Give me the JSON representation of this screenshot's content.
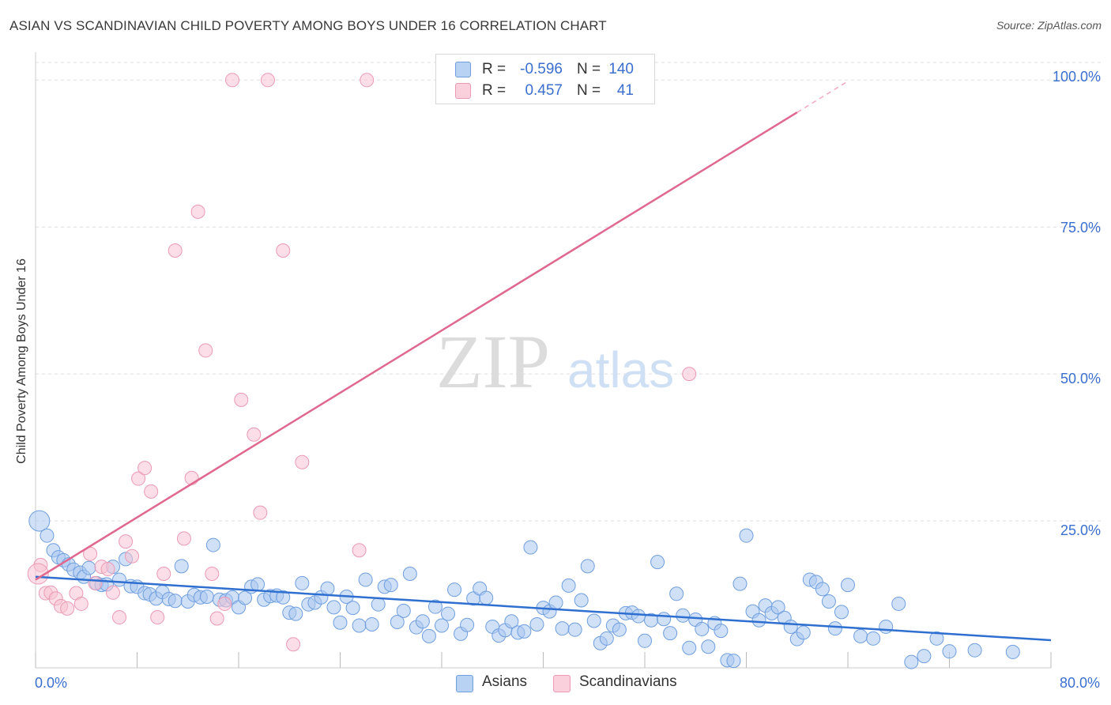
{
  "title": "ASIAN VS SCANDINAVIAN CHILD POVERTY AMONG BOYS UNDER 16 CORRELATION CHART",
  "source": "Source: ZipAtlas.com",
  "watermark": {
    "zip": "ZIP",
    "atlas": "atlas"
  },
  "legend": {
    "asians": {
      "r_label": "R =",
      "r_value": "-0.596",
      "n_label": "N =",
      "n_value": "140"
    },
    "scandinavians": {
      "r_label": "R =",
      "r_value": "0.457",
      "n_label": "N =",
      "n_value": "41"
    }
  },
  "colors": {
    "asian_fill": "#a9c7f0",
    "asian_stroke": "#6f9fe0",
    "asian_line": "#2f6fd0",
    "scand_fill": "#f8c3d3",
    "scand_stroke": "#ec9ab4",
    "scand_line": "#e0688f",
    "tick_text": "#3a6fd0",
    "grid": "#dddddd"
  },
  "chart_data": {
    "type": "scatter",
    "title": "ASIAN VS SCANDINAVIAN CHILD POVERTY AMONG BOYS UNDER 16 CORRELATION CHART",
    "xlabel": "",
    "ylabel": "Child Poverty Among Boys Under 16",
    "xlim": [
      0,
      80
    ],
    "ylim": [
      0,
      103
    ],
    "x_tick_labels": [
      {
        "value": 0,
        "label": "0.0%"
      },
      {
        "value": 80,
        "label": "80.0%"
      }
    ],
    "y_tick_labels": [
      {
        "value": 25,
        "label": "25.0%"
      },
      {
        "value": 50,
        "label": "50.0%"
      },
      {
        "value": 75,
        "label": "75.0%"
      },
      {
        "value": 100,
        "label": "100.0%"
      }
    ],
    "grid": true,
    "legend_position": "top-center",
    "series": [
      {
        "name": "Asians",
        "trend": {
          "x": [
            0,
            80
          ],
          "y": [
            15.5,
            4.7
          ]
        },
        "points": [
          [
            0.3,
            25.0
          ],
          [
            0.9,
            22.5
          ],
          [
            1.4,
            20.0
          ],
          [
            1.8,
            18.8
          ],
          [
            2.2,
            18.3
          ],
          [
            2.6,
            17.6
          ],
          [
            3.0,
            16.7
          ],
          [
            3.5,
            16.2
          ],
          [
            3.8,
            15.5
          ],
          [
            4.2,
            17.0
          ],
          [
            4.8,
            14.4
          ],
          [
            5.2,
            14.1
          ],
          [
            5.6,
            14.2
          ],
          [
            6.1,
            17.2
          ],
          [
            6.6,
            15.0
          ],
          [
            7.1,
            18.5
          ],
          [
            7.5,
            13.9
          ],
          [
            8.0,
            13.8
          ],
          [
            8.6,
            12.7
          ],
          [
            9.0,
            12.5
          ],
          [
            9.5,
            11.8
          ],
          [
            10.0,
            12.9
          ],
          [
            10.5,
            11.7
          ],
          [
            11.0,
            11.4
          ],
          [
            11.5,
            17.3
          ],
          [
            12.0,
            11.3
          ],
          [
            12.5,
            12.4
          ],
          [
            13.0,
            12.0
          ],
          [
            13.5,
            12.1
          ],
          [
            14.0,
            20.9
          ],
          [
            14.5,
            11.6
          ],
          [
            15.0,
            11.5
          ],
          [
            15.5,
            12.0
          ],
          [
            16.0,
            10.3
          ],
          [
            16.5,
            11.9
          ],
          [
            17.0,
            13.8
          ],
          [
            17.5,
            14.2
          ],
          [
            18.0,
            11.6
          ],
          [
            18.5,
            12.2
          ],
          [
            19.0,
            12.3
          ],
          [
            19.5,
            12.0
          ],
          [
            20.0,
            9.4
          ],
          [
            20.5,
            9.2
          ],
          [
            21.0,
            14.4
          ],
          [
            21.5,
            10.8
          ],
          [
            22.0,
            11.1
          ],
          [
            22.5,
            12.0
          ],
          [
            23.0,
            13.5
          ],
          [
            23.5,
            10.3
          ],
          [
            24.0,
            7.7
          ],
          [
            24.5,
            12.1
          ],
          [
            25.0,
            10.2
          ],
          [
            25.5,
            7.2
          ],
          [
            26.0,
            15.0
          ],
          [
            26.5,
            7.4
          ],
          [
            27.0,
            10.8
          ],
          [
            27.5,
            13.8
          ],
          [
            28.0,
            14.1
          ],
          [
            28.5,
            7.8
          ],
          [
            29.0,
            9.7
          ],
          [
            29.5,
            16.0
          ],
          [
            30.0,
            6.9
          ],
          [
            30.5,
            7.9
          ],
          [
            31.0,
            5.4
          ],
          [
            31.5,
            10.4
          ],
          [
            32.0,
            7.2
          ],
          [
            32.5,
            9.2
          ],
          [
            33.0,
            13.3
          ],
          [
            33.5,
            5.8
          ],
          [
            34.0,
            7.3
          ],
          [
            34.5,
            11.8
          ],
          [
            35.0,
            13.5
          ],
          [
            35.5,
            11.9
          ],
          [
            36.0,
            7.0
          ],
          [
            36.5,
            5.5
          ],
          [
            37.0,
            6.4
          ],
          [
            37.5,
            7.9
          ],
          [
            38.0,
            6.0
          ],
          [
            38.5,
            6.2
          ],
          [
            39.0,
            20.5
          ],
          [
            39.5,
            7.4
          ],
          [
            40.0,
            10.2
          ],
          [
            40.5,
            9.6
          ],
          [
            41.0,
            11.1
          ],
          [
            41.5,
            6.7
          ],
          [
            42.0,
            14.0
          ],
          [
            42.5,
            6.5
          ],
          [
            43.0,
            11.5
          ],
          [
            43.5,
            17.3
          ],
          [
            44.0,
            8.0
          ],
          [
            44.5,
            4.2
          ],
          [
            45.0,
            5.0
          ],
          [
            45.5,
            7.2
          ],
          [
            46.0,
            6.5
          ],
          [
            46.5,
            9.3
          ],
          [
            47.0,
            9.4
          ],
          [
            47.5,
            8.8
          ],
          [
            48.0,
            4.6
          ],
          [
            48.5,
            8.1
          ],
          [
            49.0,
            18.0
          ],
          [
            49.5,
            8.3
          ],
          [
            50.0,
            5.9
          ],
          [
            50.5,
            12.6
          ],
          [
            51.0,
            8.9
          ],
          [
            51.5,
            3.4
          ],
          [
            52.0,
            8.2
          ],
          [
            52.5,
            6.6
          ],
          [
            53.0,
            3.6
          ],
          [
            53.5,
            7.6
          ],
          [
            54.0,
            6.3
          ],
          [
            54.5,
            1.3
          ],
          [
            55.0,
            1.2
          ],
          [
            55.5,
            14.3
          ],
          [
            56.0,
            22.5
          ],
          [
            56.5,
            9.6
          ],
          [
            57.0,
            8.1
          ],
          [
            57.5,
            10.6
          ],
          [
            58.0,
            9.3
          ],
          [
            58.5,
            10.3
          ],
          [
            59.0,
            8.5
          ],
          [
            59.5,
            7.0
          ],
          [
            60.0,
            4.9
          ],
          [
            60.5,
            6.0
          ],
          [
            61.0,
            15.0
          ],
          [
            61.5,
            14.6
          ],
          [
            62.0,
            13.4
          ],
          [
            62.5,
            11.3
          ],
          [
            63.0,
            6.7
          ],
          [
            63.5,
            9.5
          ],
          [
            64.0,
            14.1
          ],
          [
            65.0,
            5.4
          ],
          [
            66.0,
            5.0
          ],
          [
            67.0,
            7.0
          ],
          [
            68.0,
            10.9
          ],
          [
            69.0,
            1.0
          ],
          [
            70.0,
            2.0
          ],
          [
            71.0,
            5.0
          ],
          [
            72.0,
            2.8
          ],
          [
            74.0,
            3.0
          ],
          [
            77.0,
            2.7
          ]
        ]
      },
      {
        "name": "Scandinavians",
        "trend": {
          "x": [
            0,
            60
          ],
          "y": [
            15.0,
            94.5
          ]
        },
        "points": [
          [
            0.4,
            17.5
          ],
          [
            0.8,
            12.7
          ],
          [
            1.2,
            12.8
          ],
          [
            1.6,
            11.8
          ],
          [
            2.0,
            10.5
          ],
          [
            2.5,
            10.1
          ],
          [
            3.2,
            12.7
          ],
          [
            3.6,
            10.9
          ],
          [
            4.3,
            19.4
          ],
          [
            4.7,
            14.4
          ],
          [
            5.2,
            17.2
          ],
          [
            5.7,
            16.8
          ],
          [
            6.1,
            12.8
          ],
          [
            6.6,
            8.6
          ],
          [
            7.1,
            21.5
          ],
          [
            7.6,
            19.0
          ],
          [
            8.1,
            32.2
          ],
          [
            8.6,
            34.0
          ],
          [
            9.1,
            30.0
          ],
          [
            9.6,
            8.6
          ],
          [
            10.1,
            16.0
          ],
          [
            11.0,
            71.0
          ],
          [
            11.7,
            22.0
          ],
          [
            12.3,
            32.3
          ],
          [
            12.8,
            77.6
          ],
          [
            13.4,
            54.0
          ],
          [
            13.9,
            16.0
          ],
          [
            14.3,
            8.4
          ],
          [
            14.9,
            10.9
          ],
          [
            15.5,
            100.0
          ],
          [
            16.2,
            45.6
          ],
          [
            17.2,
            39.7
          ],
          [
            17.7,
            26.4
          ],
          [
            18.3,
            100.0
          ],
          [
            19.5,
            71.0
          ],
          [
            20.3,
            4.0
          ],
          [
            21.0,
            35.0
          ],
          [
            25.5,
            20.0
          ],
          [
            26.1,
            100.0
          ],
          [
            51.5,
            50.0
          ],
          [
            0.2,
            16.0
          ]
        ]
      }
    ]
  },
  "axes_labels": {
    "ylabel": "Child Poverty Among Boys Under 16",
    "x_left": "0.0%",
    "x_right": "80.0%",
    "y_25": "25.0%",
    "y_50": "50.0%",
    "y_75": "75.0%",
    "y_100": "100.0%"
  },
  "bottom_legend": {
    "asians": "Asians",
    "scandinavians": "Scandinavians"
  }
}
